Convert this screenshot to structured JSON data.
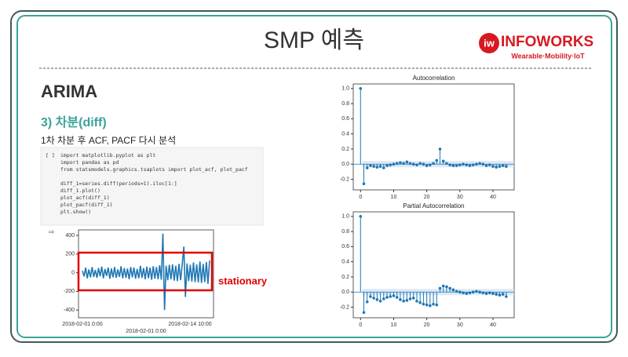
{
  "header": {
    "title": "SMP 예측",
    "logo": {
      "name": "INFOWORKS",
      "tagline": "Wearable·Mobility·IoT"
    }
  },
  "section": {
    "title": "ARIMA",
    "subtitle": "3) 차분(diff)",
    "description": "1차 차분 후 ACF, PACF 다시 분석"
  },
  "code": {
    "prompt": "[ ]",
    "imports": [
      "import matplotlib.pyplot as plt",
      "import pandas as pd",
      "from statsmodels.graphics.tsaplots import plot_acf, plot_pacf"
    ],
    "body": [
      "diff_1=series.diff(periods=1).iloc[1:]",
      "diff_1.plot()",
      "plot_acf(diff_1)",
      "plot_pacf(diff_1)",
      "plt.show()"
    ]
  },
  "plots": {
    "series": {
      "type": "line",
      "color": "#1f77b4",
      "values": [
        20,
        -40,
        55,
        -60,
        35,
        -50,
        60,
        -45,
        30,
        -55,
        50,
        -40,
        65,
        -60,
        40,
        -35,
        55,
        -65,
        45,
        -50,
        60,
        -55,
        35,
        -45,
        70,
        -60,
        50,
        -55,
        45,
        -70,
        60,
        -50,
        55,
        -65,
        40,
        -60,
        75,
        -55,
        50,
        -70,
        65,
        -60,
        55,
        -75,
        70,
        -65,
        60,
        -70,
        80,
        -75,
        420,
        -400,
        75,
        -80,
        85,
        -70,
        90,
        -85,
        75,
        -90,
        95,
        -80,
        85,
        280,
        -260,
        100,
        -90,
        85,
        -95,
        110,
        -100,
        90,
        -105,
        120,
        -110,
        95,
        -100,
        115,
        -120,
        130
      ],
      "ylim": [
        -483,
        459
      ],
      "yticks": [
        -400,
        -200,
        0,
        200,
        400
      ],
      "xtick_labels": [
        "2018-02-01 0:00",
        "2018-02-14 10:00"
      ],
      "xlabel": "2018-02-01 0:00"
    },
    "acf": {
      "type": "stem",
      "title": "Autocorrelation",
      "color": "#1f77b4",
      "values": [
        1,
        -0.26,
        -0.05,
        -0.02,
        -0.03,
        -0.04,
        -0.03,
        -0.05,
        -0.02,
        -0.01,
        0.0,
        0.01,
        0.02,
        0.01,
        0.03,
        0.01,
        0.0,
        -0.01,
        0.01,
        0.0,
        -0.02,
        -0.01,
        0.01,
        0.05,
        0.2,
        0.04,
        0.01,
        -0.01,
        -0.02,
        -0.02,
        -0.01,
        0.0,
        -0.01,
        -0.02,
        -0.01,
        0.0,
        0.01,
        0.0,
        -0.02,
        -0.01,
        -0.03,
        -0.04,
        -0.03,
        -0.02,
        -0.03
      ],
      "xlim": [
        -2.2,
        46.4
      ],
      "xticks": [
        0,
        10,
        20,
        30,
        40
      ],
      "ylim": [
        -0.34,
        1.06
      ],
      "yticks": [
        -0.2,
        {
          "value": 0,
          "label": "0.0"
        },
        0.2,
        0.4,
        0.6,
        0.8,
        {
          "value": 1,
          "label": "1.0"
        }
      ]
    },
    "pacf": {
      "type": "stem",
      "title": "Partial Autocorrelation",
      "color": "#1f77b4",
      "values": [
        1,
        -0.27,
        -0.13,
        -0.06,
        -0.08,
        -0.1,
        -0.12,
        -0.09,
        -0.07,
        -0.06,
        -0.05,
        -0.07,
        -0.1,
        -0.12,
        -0.11,
        -0.09,
        -0.08,
        -0.12,
        -0.14,
        -0.16,
        -0.17,
        -0.18,
        -0.16,
        -0.17,
        0.05,
        0.08,
        0.07,
        0.05,
        0.03,
        0.01,
        0.0,
        -0.01,
        -0.02,
        -0.01,
        0.0,
        0.01,
        0.0,
        -0.01,
        -0.02,
        -0.01,
        -0.02,
        -0.03,
        -0.04,
        -0.03,
        -0.06
      ],
      "xlim": [
        -2.2,
        46.4
      ],
      "xticks": [
        0,
        10,
        20,
        30,
        40
      ],
      "ylim": [
        -0.34,
        1.06
      ],
      "yticks": [
        -0.2,
        {
          "value": 0,
          "label": "0.0"
        },
        0.2,
        0.4,
        0.6,
        0.8,
        {
          "value": 1,
          "label": "1.0"
        }
      ]
    }
  },
  "annotation": {
    "text": "stationary",
    "color": "#e00000"
  }
}
